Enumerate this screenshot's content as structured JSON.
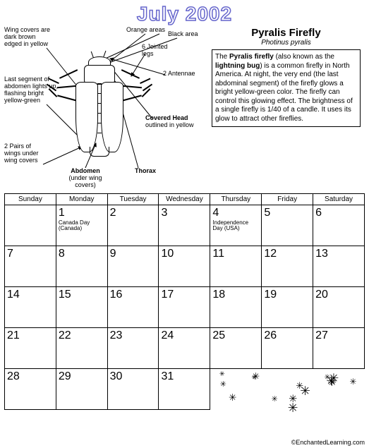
{
  "title": "July 2002",
  "species": {
    "common": "Pyralis Firefly",
    "scientific": "Photinus pyralis"
  },
  "info_html": "The <b>Pyralis firefly</b> (also known as the <b>lightning bug</b>) is a common firefly in North America. At night, the very end (the last abdominal segment) of the firefly glows a bright yellow-green color. The firefly can control this glowing effect. The brightness of a single firefly is 1/40 of a candle. It uses its glow to attract other fireflies.",
  "diagram_labels": {
    "wing_covers": "Wing covers are\ndark brown\nedged in yellow",
    "last_segment": "Last segment of\nabdomen lights up,\nflashing bright\nyellow-green",
    "wing_pairs": "2 Pairs of\nwings under\nwing covers",
    "abdomen": "Abdomen",
    "abdomen_sub": "(under wing\ncovers)",
    "jointed_legs": "6 Jointed\nlegs",
    "orange_areas": "Orange areas",
    "black_area": "Black area",
    "antennae": "2 Antennae",
    "covered_head": "Covered Head",
    "covered_head_sub": "outlined in yellow",
    "thorax": "Thorax"
  },
  "calendar": {
    "days": [
      "Sunday",
      "Monday",
      "Tuesday",
      "Wednesday",
      "Thursday",
      "Friday",
      "Saturday"
    ],
    "weeks": [
      [
        null,
        {
          "n": 1,
          "h": "Canada Day\n(Canada)"
        },
        {
          "n": 2
        },
        {
          "n": 3
        },
        {
          "n": 4,
          "h": "Independence\nDay (USA)"
        },
        {
          "n": 5
        },
        {
          "n": 6
        }
      ],
      [
        {
          "n": 7
        },
        {
          "n": 8
        },
        {
          "n": 9
        },
        {
          "n": 10
        },
        {
          "n": 11
        },
        {
          "n": 12
        },
        {
          "n": 13
        }
      ],
      [
        {
          "n": 14
        },
        {
          "n": 15
        },
        {
          "n": 16
        },
        {
          "n": 17
        },
        {
          "n": 18
        },
        {
          "n": 19
        },
        {
          "n": 20
        }
      ],
      [
        {
          "n": 21
        },
        {
          "n": 22
        },
        {
          "n": 23
        },
        {
          "n": 24
        },
        {
          "n": 25
        },
        {
          "n": 26
        },
        {
          "n": 27
        }
      ],
      [
        {
          "n": 28
        },
        {
          "n": 29
        },
        {
          "n": 30
        },
        {
          "n": 31
        },
        "deco",
        "deco",
        "deco"
      ]
    ]
  },
  "credit": "©EnchantedLearning.com"
}
